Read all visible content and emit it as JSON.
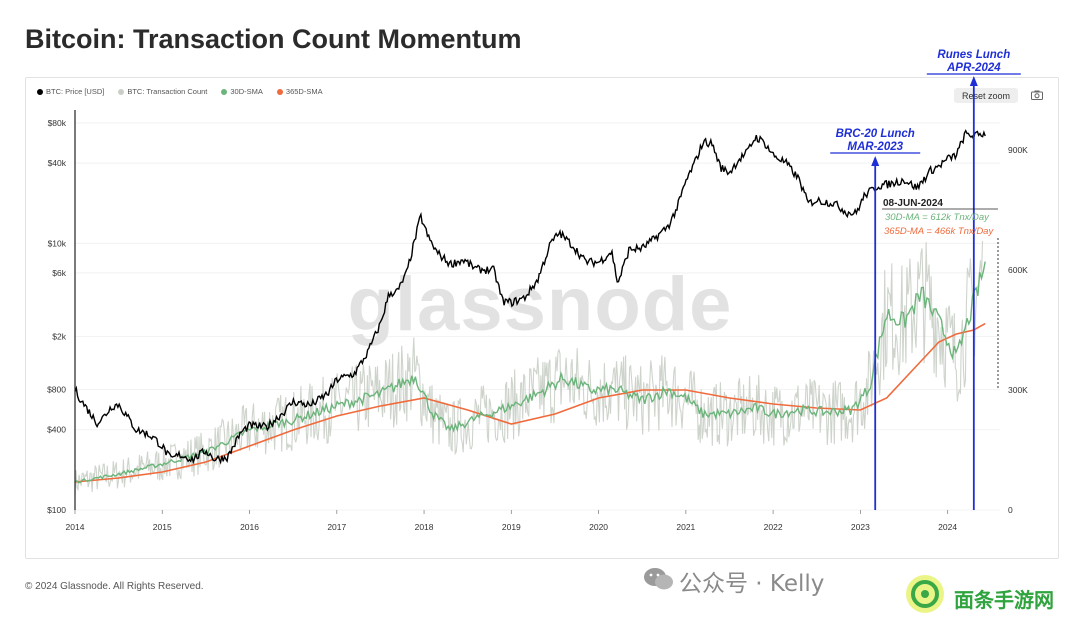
{
  "page": {
    "title": "Bitcoin: Transaction Count Momentum",
    "copyright": "© 2024 Glassnode. All Rights Reserved.",
    "reset_zoom_label": "Reset zoom",
    "watermark_center": "glassnode",
    "watermark_wechat": "公众号 · Kelly",
    "watermark_game": "面条手游网"
  },
  "colors": {
    "price": "#000000",
    "tx_count": "#c9cfc6",
    "sma30": "#6bb47a",
    "sma365": "#f06a3c",
    "annotation_blue": "#1f2fd6"
  },
  "chart_data": {
    "type": "line",
    "legend_placement": "top-left",
    "legend": [
      {
        "label": "BTC: Price [USD]",
        "color": "#000000"
      },
      {
        "label": "BTC: Transaction Count",
        "color": "#c9cfc6"
      },
      {
        "label": "30D-SMA",
        "color": "#6bb47a"
      },
      {
        "label": "365D-SMA",
        "color": "#f06a3c"
      }
    ],
    "x_ticks": [
      "2014",
      "2015",
      "2016",
      "2017",
      "2018",
      "2019",
      "2020",
      "2021",
      "2022",
      "2023",
      "2024"
    ],
    "x_range": [
      2014.0,
      2024.6
    ],
    "y_left_scale": "log",
    "y_left_range": [
      100,
      100000
    ],
    "y_left_ticks": [
      {
        "value": 100,
        "label": "$100"
      },
      {
        "value": 400,
        "label": "$400"
      },
      {
        "value": 800,
        "label": "$800"
      },
      {
        "value": 2000,
        "label": "$2k"
      },
      {
        "value": 6000,
        "label": "$6k"
      },
      {
        "value": 10000,
        "label": "$10k"
      },
      {
        "value": 40000,
        "label": "$40k"
      },
      {
        "value": 80000,
        "label": "$80k"
      }
    ],
    "y_right_range": [
      0,
      1000000
    ],
    "y_right_ticks": [
      {
        "value": 0,
        "label": "0"
      },
      {
        "value": 300000,
        "label": "300K"
      },
      {
        "value": 600000,
        "label": "600K"
      },
      {
        "value": 900000,
        "label": "900K"
      }
    ],
    "series": [
      {
        "name": "BTC: Price [USD]",
        "axis": "left",
        "x": [
          2014.0,
          2014.08,
          2014.16,
          2014.25,
          2014.33,
          2014.42,
          2014.5,
          2014.6,
          2014.7,
          2014.8,
          2014.9,
          2015.0,
          2015.1,
          2015.2,
          2015.35,
          2015.5,
          2015.6,
          2015.75,
          2015.9,
          2016.0,
          2016.2,
          2016.4,
          2016.5,
          2016.7,
          2016.9,
          2017.0,
          2017.2,
          2017.35,
          2017.5,
          2017.6,
          2017.7,
          2017.8,
          2017.9,
          2017.96,
          2018.05,
          2018.15,
          2018.3,
          2018.45,
          2018.6,
          2018.8,
          2018.9,
          2019.0,
          2019.15,
          2019.3,
          2019.45,
          2019.55,
          2019.7,
          2019.85,
          2020.0,
          2020.15,
          2020.22,
          2020.35,
          2020.5,
          2020.65,
          2020.8,
          2020.9,
          2021.0,
          2021.1,
          2021.2,
          2021.3,
          2021.4,
          2021.5,
          2021.6,
          2021.7,
          2021.8,
          2021.9,
          2022.0,
          2022.15,
          2022.3,
          2022.4,
          2022.5,
          2022.7,
          2022.85,
          2022.95,
          2023.05,
          2023.2,
          2023.35,
          2023.5,
          2023.65,
          2023.8,
          2023.9,
          2024.0,
          2024.1,
          2024.2,
          2024.3,
          2024.43
        ],
        "values": [
          800,
          650,
          550,
          450,
          500,
          600,
          620,
          500,
          400,
          380,
          350,
          300,
          240,
          260,
          240,
          280,
          240,
          250,
          380,
          430,
          420,
          550,
          650,
          610,
          750,
          950,
          1050,
          1500,
          2500,
          4200,
          4400,
          6000,
          11000,
          16000,
          11000,
          8500,
          7000,
          7500,
          6400,
          6300,
          3700,
          3600,
          3900,
          5300,
          10000,
          12000,
          9700,
          7300,
          7200,
          8700,
          5000,
          9000,
          9200,
          11000,
          13500,
          18500,
          29000,
          40000,
          58000,
          56000,
          37000,
          34000,
          42000,
          48000,
          63000,
          57000,
          46000,
          40000,
          30000,
          20000,
          21000,
          20000,
          17000,
          16800,
          23000,
          27000,
          28000,
          30000,
          26000,
          35000,
          38000,
          43000,
          46000,
          66000,
          64000,
          67000
        ]
      },
      {
        "name": "30D-SMA",
        "axis": "right",
        "x": [
          2014.0,
          2014.5,
          2015.0,
          2015.5,
          2016.0,
          2016.5,
          2017.0,
          2017.5,
          2017.9,
          2018.1,
          2018.3,
          2018.6,
          2019.0,
          2019.3,
          2019.6,
          2019.9,
          2020.2,
          2020.5,
          2020.8,
          2021.0,
          2021.2,
          2021.5,
          2021.8,
          2022.0,
          2022.3,
          2022.6,
          2022.9,
          2023.1,
          2023.3,
          2023.5,
          2023.7,
          2023.9,
          2024.1,
          2024.3,
          2024.43
        ],
        "values": [
          70000,
          90000,
          115000,
          145000,
          200000,
          225000,
          260000,
          290000,
          335000,
          240000,
          200000,
          230000,
          260000,
          290000,
          330000,
          300000,
          300000,
          275000,
          300000,
          280000,
          240000,
          240000,
          255000,
          240000,
          250000,
          245000,
          250000,
          305000,
          490000,
          470000,
          540000,
          470000,
          380000,
          520000,
          612000
        ]
      },
      {
        "name": "365D-SMA",
        "axis": "right",
        "x": [
          2014.0,
          2014.5,
          2015.0,
          2015.5,
          2016.0,
          2016.5,
          2017.0,
          2017.5,
          2018.0,
          2018.5,
          2019.0,
          2019.5,
          2020.0,
          2020.5,
          2021.0,
          2021.5,
          2022.0,
          2022.5,
          2023.0,
          2023.3,
          2023.6,
          2023.9,
          2024.1,
          2024.3,
          2024.43
        ],
        "values": [
          70000,
          80000,
          95000,
          120000,
          160000,
          200000,
          235000,
          260000,
          280000,
          250000,
          215000,
          240000,
          280000,
          300000,
          300000,
          280000,
          265000,
          255000,
          250000,
          280000,
          350000,
          420000,
          440000,
          450000,
          466000
        ]
      },
      {
        "name": "BTC: Transaction Count",
        "axis": "right",
        "x": [
          2014.0,
          2015.0,
          2016.0,
          2017.0,
          2017.9,
          2018.5,
          2019.6,
          2020.5,
          2021.5,
          2022.5,
          2023.0,
          2023.4,
          2023.8,
          2024.0,
          2024.2,
          2024.4
        ],
        "values": [
          70000,
          110000,
          210000,
          260000,
          330000,
          230000,
          330000,
          280000,
          240000,
          250000,
          260000,
          520000,
          600000,
          450000,
          700000,
          650000
        ]
      }
    ],
    "annotations": [
      {
        "label": "BRC-20 Lunch",
        "date_label": "MAR-2023",
        "x": 2023.17
      },
      {
        "label": "Runes Lunch",
        "date_label": "APR-2024",
        "x": 2024.3
      },
      {
        "label": "08-JUN-2024",
        "sma30_text": "30D-MA = 612k Tnx/Day",
        "sma365_text": "365D-MA = 466k Tnx/Day",
        "x": 2024.44
      }
    ]
  }
}
